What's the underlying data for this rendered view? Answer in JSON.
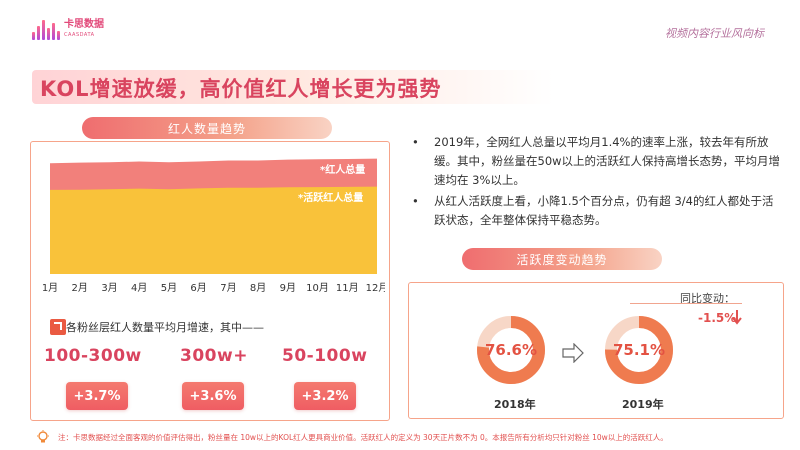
{
  "brand": {
    "name_cn": "卡思数据",
    "name_en": "CAASDATA"
  },
  "header_tag": "视频内容行业风向标",
  "title": "KOL增速放缓，高价值红人增长更为强势",
  "left_panel": {
    "pill_label": "红人数量趋势",
    "subtitle": "各粉丝层红人数量平均月增速，其中——",
    "tiers": [
      {
        "name": "100-300w",
        "growth": "+3.7%"
      },
      {
        "name": "300w+",
        "growth": "+3.6%"
      },
      {
        "name": "50-100w",
        "growth": "+3.2%"
      }
    ]
  },
  "chart_data": {
    "type": "area",
    "categories": [
      "1月",
      "2月",
      "3月",
      "4月",
      "5月",
      "6月",
      "7月",
      "8月",
      "9月",
      "10月",
      "11月",
      "12月"
    ],
    "series": [
      {
        "name": "*红人总量",
        "values": [
          100,
          100.6,
          100.9,
          101.6,
          100.9,
          101.6,
          102.5,
          102.5,
          103.3,
          103.6,
          103.9,
          104.2
        ]
      },
      {
        "name": "*活跃红人总量",
        "values": [
          76,
          76.1,
          76.5,
          77.1,
          76.5,
          77.3,
          77.9,
          77.9,
          78.3,
          78.5,
          78.7,
          78.9
        ]
      }
    ],
    "ylim": [
      0,
      112
    ],
    "colors": [
      "#f2807b",
      "#f9c23a"
    ],
    "grid": false,
    "legend": "inline-right"
  },
  "bullets": [
    "2019年，全网红人总量以平均月1.4%的速率上涨，较去年有所放缓。其中，粉丝量在50w以上的活跃红人保持高增长态势，平均月增速均在 3%以上。",
    "从红人活跃度上看，小降1.5个百分点，仍有超 3/4的红人都处于活跃状态，全年整体保持平稳态势。"
  ],
  "right_panel": {
    "pill_label": "活跃度变动趋势",
    "change_label": "同比变动：",
    "change_value": "-1.5%",
    "donuts": [
      {
        "year": "2018年",
        "label": "76.6%",
        "value": 76.6
      },
      {
        "year": "2019年",
        "label": "75.1%",
        "value": 75.1
      }
    ]
  },
  "footer_note": "注：卡思数据经过全面客观的价值评估得出，粉丝量在 10w以上的KOL红人更具商业价值。活跃红人的定义为 30天正片数不为 0。本报告所有分析均只针对粉丝 10w以上的活跃红人。",
  "colors": {
    "accent": "#d9445f",
    "badge": "#ef5d63",
    "ring": "#ef7b4f",
    "ring_track": "#f7d7c7"
  }
}
